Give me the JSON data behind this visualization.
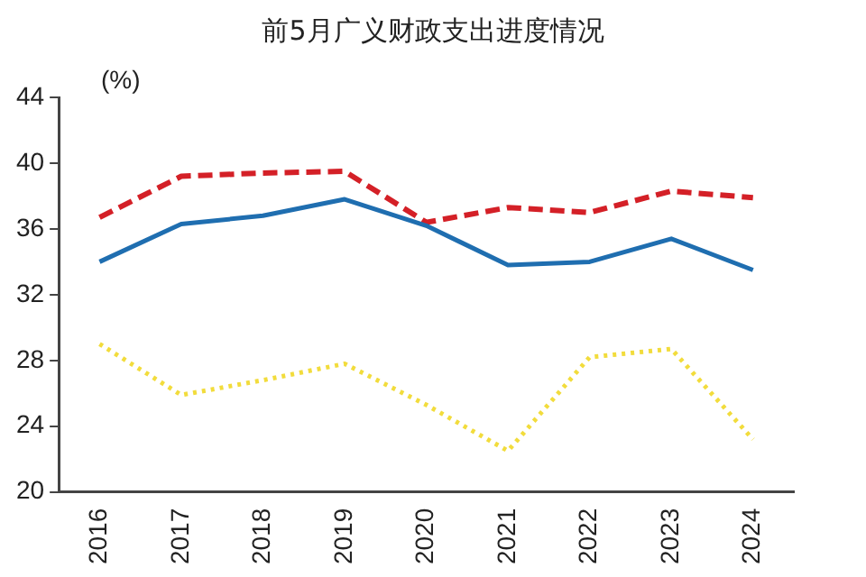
{
  "chart_data": {
    "type": "line",
    "title": "前5月广义财政支出进度情况",
    "ylabel": "(%)",
    "categories": [
      "2016",
      "2017",
      "2018",
      "2019",
      "2020",
      "2021",
      "2022",
      "2023",
      "2024"
    ],
    "series": [
      {
        "color": "#1f6eb0",
        "line_style": "solid",
        "values": [
          34.0,
          36.3,
          36.8,
          37.8,
          36.2,
          33.8,
          34.0,
          35.4,
          33.5
        ]
      },
      {
        "color": "#d42027",
        "line_style": "dashed",
        "values": [
          36.7,
          39.2,
          39.4,
          39.5,
          36.4,
          37.3,
          37.0,
          38.3,
          37.9
        ]
      },
      {
        "color": "#f2dc3c",
        "line_style": "dotted",
        "values": [
          29.0,
          25.9,
          26.8,
          27.8,
          25.3,
          22.5,
          28.2,
          28.7,
          23.2
        ]
      }
    ],
    "ylim": [
      20,
      44
    ],
    "yticks": [
      20,
      24,
      28,
      32,
      36,
      40,
      44
    ],
    "grid": false,
    "legend": false,
    "marker": "none"
  }
}
